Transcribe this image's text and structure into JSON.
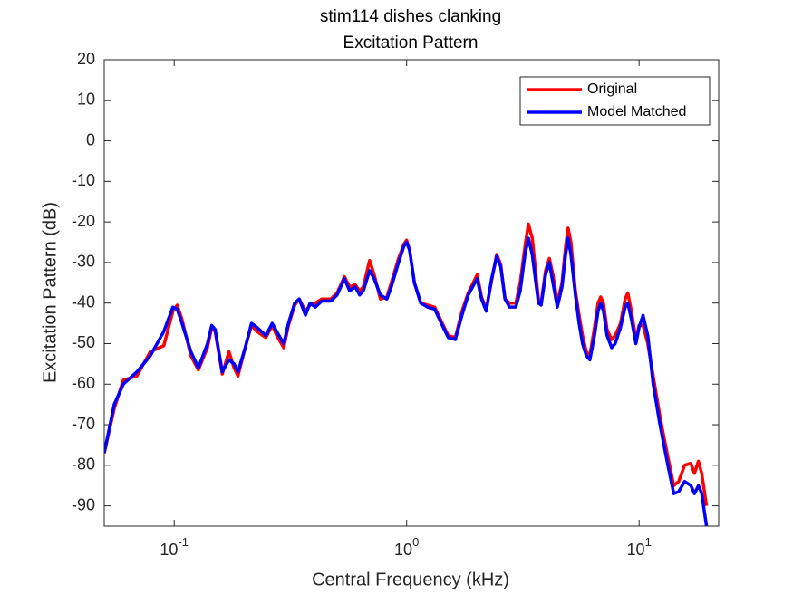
{
  "chart_data": {
    "type": "line",
    "title": "stim114 dishes clanking",
    "subtitle": "Excitation Pattern",
    "x_label": "Central Frequency (kHz)",
    "y_label": "Excitation Pattern (dB)",
    "log_x": true,
    "xlim": [
      0.05,
      22
    ],
    "ylim": [
      -95,
      20
    ],
    "xticks": [
      {
        "value": 0.1,
        "label": "10",
        "exponent": "-1"
      },
      {
        "value": 1,
        "label": "10",
        "exponent": "0"
      },
      {
        "value": 10,
        "label": "10",
        "exponent": "1"
      }
    ],
    "yticks": [
      -90,
      -80,
      -70,
      -60,
      -50,
      -40,
      -30,
      -20,
      -10,
      0,
      10,
      20
    ],
    "legend": "northeast",
    "x": [
      0.05,
      0.0552,
      0.0604,
      0.069,
      0.0789,
      0.0902,
      0.0987,
      0.103,
      0.108,
      0.118,
      0.127,
      0.139,
      0.145,
      0.15,
      0.161,
      0.172,
      0.181,
      0.188,
      0.202,
      0.215,
      0.227,
      0.248,
      0.264,
      0.276,
      0.296,
      0.31,
      0.33,
      0.345,
      0.367,
      0.384,
      0.405,
      0.431,
      0.472,
      0.502,
      0.54,
      0.569,
      0.601,
      0.628,
      0.651,
      0.693,
      0.725,
      0.771,
      0.822,
      0.859,
      0.923,
      0.973,
      1.0,
      1.03,
      1.08,
      1.15,
      1.23,
      1.32,
      1.41,
      1.51,
      1.62,
      1.73,
      1.84,
      2.01,
      2.1,
      2.2,
      2.32,
      2.44,
      2.54,
      2.65,
      2.77,
      2.95,
      3.08,
      3.23,
      3.34,
      3.47,
      3.69,
      3.79,
      3.96,
      4.11,
      4.26,
      4.45,
      4.66,
      4.83,
      4.95,
      5.09,
      5.32,
      5.52,
      5.71,
      5.93,
      6.14,
      6.43,
      6.66,
      6.84,
      7.03,
      7.28,
      7.62,
      7.89,
      8.32,
      8.71,
      8.94,
      9.27,
      9.69,
      10.0,
      10.4,
      10.9,
      11.5,
      12.3,
      13.3,
      14.1,
      14.8,
      15.7,
      16.7,
      17.3,
      18.0,
      18.6,
      19.5
    ],
    "series": [
      {
        "name": "Original",
        "color": "#ff0000",
        "values": [
          -77,
          -66,
          -59,
          -58,
          -52,
          -50.5,
          -42,
          -40.5,
          -44,
          -53,
          -56.5,
          -51,
          -46,
          -47,
          -57.5,
          -52,
          -56,
          -58,
          -51,
          -45.5,
          -47,
          -48.5,
          -45.5,
          -48,
          -51,
          -45.5,
          -40.5,
          -39,
          -42,
          -40.5,
          -40,
          -39,
          -39,
          -37.5,
          -33.5,
          -36,
          -35.5,
          -37,
          -36,
          -29.5,
          -33,
          -39,
          -38.5,
          -35,
          -29,
          -25.5,
          -24.5,
          -27,
          -35,
          -40,
          -40.5,
          -41,
          -44.5,
          -48,
          -48.5,
          -42,
          -37.5,
          -33,
          -38.5,
          -41.5,
          -34.5,
          -28,
          -30.5,
          -39,
          -40,
          -40,
          -35,
          -26,
          -20.5,
          -24,
          -39,
          -40,
          -32,
          -29,
          -33,
          -40,
          -35,
          -26,
          -21.5,
          -25,
          -37,
          -43,
          -48,
          -52,
          -53,
          -46,
          -40,
          -38.5,
          -40,
          -46.5,
          -49,
          -48,
          -45,
          -39,
          -37.5,
          -42,
          -49,
          -45.5,
          -45.5,
          -50,
          -58,
          -68,
          -78,
          -85,
          -84,
          -80,
          -79.5,
          -82,
          -79,
          -82,
          -90
        ]
      },
      {
        "name": "Model Matched",
        "color": "#0000ff",
        "values": [
          -77,
          -65,
          -60,
          -57,
          -53,
          -47,
          -41,
          -41.5,
          -45,
          -52,
          -56,
          -50,
          -45.5,
          -46.5,
          -57,
          -54,
          -55,
          -57,
          -51,
          -45,
          -46,
          -48,
          -45,
          -47,
          -50,
          -45,
          -40,
          -39,
          -43,
          -40,
          -41,
          -39.5,
          -39.5,
          -38,
          -34,
          -37,
          -36,
          -38,
          -37,
          -32,
          -34,
          -38,
          -39,
          -36,
          -30,
          -26,
          -25,
          -27,
          -35,
          -40,
          -41,
          -41.5,
          -45,
          -48.5,
          -49,
          -43,
          -38,
          -34,
          -39,
          -42,
          -34,
          -28.5,
          -31,
          -39,
          -41,
          -41,
          -37,
          -28,
          -24,
          -28,
          -40,
          -40.5,
          -33,
          -30,
          -35,
          -41,
          -36,
          -28,
          -24,
          -28,
          -38,
          -45,
          -50,
          -53,
          -54,
          -48,
          -42,
          -40,
          -42,
          -48,
          -51,
          -50,
          -46,
          -41,
          -40,
          -44,
          -50,
          -46,
          -43,
          -48,
          -60,
          -70,
          -80,
          -87,
          -86.5,
          -84,
          -85,
          -87,
          -85,
          -87,
          -95
        ]
      }
    ]
  }
}
